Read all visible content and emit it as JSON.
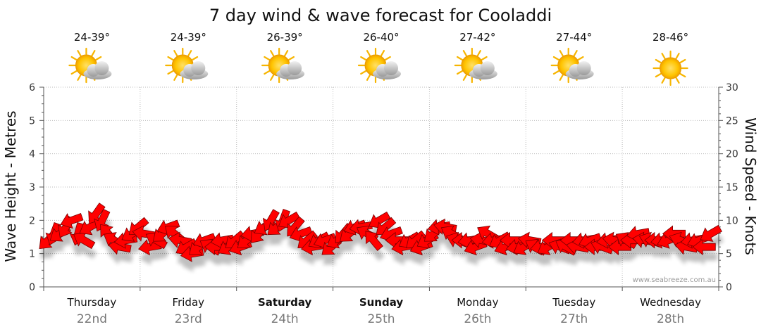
{
  "chart_data": {
    "type": "scatter",
    "title": "7 day wind & wave forecast for Cooladdi",
    "y_left_label": "Wave Height - Metres",
    "y_right_label": "Wind Speed - Knots",
    "y_left_ticks": [
      "0",
      "1",
      "2",
      "3",
      "4",
      "5",
      "6"
    ],
    "y_right_ticks": [
      "0",
      "5",
      "10",
      "15",
      "20",
      "25",
      "30"
    ],
    "ylim_left": [
      0,
      6
    ],
    "ylim_right": [
      0,
      30
    ],
    "grid": true,
    "credit": "www.seabreeze.com.au",
    "days": [
      {
        "name": "Thursday",
        "date": "22nd",
        "bold": false,
        "temp": "24-39°",
        "icon": "sun-cloud-icon"
      },
      {
        "name": "Friday",
        "date": "23rd",
        "bold": false,
        "temp": "24-39°",
        "icon": "sun-cloud-icon"
      },
      {
        "name": "Saturday",
        "date": "24th",
        "bold": true,
        "temp": "26-39°",
        "icon": "sun-cloud-icon"
      },
      {
        "name": "Sunday",
        "date": "25th",
        "bold": true,
        "temp": "26-40°",
        "icon": "sun-cloud-icon"
      },
      {
        "name": "Monday",
        "date": "26th",
        "bold": false,
        "temp": "27-42°",
        "icon": "sun-cloud-icon"
      },
      {
        "name": "Tuesday",
        "date": "27th",
        "bold": false,
        "temp": "27-44°",
        "icon": "sun-cloud-icon"
      },
      {
        "name": "Wednesday",
        "date": "28th",
        "bold": false,
        "temp": "28-46°",
        "icon": "sun-icon"
      }
    ],
    "arrow_color": "#ff0000",
    "wind_series": {
      "x_day_fraction_step": 0.0625,
      "speed_knots": [
        7,
        8,
        8,
        9,
        10,
        8,
        7,
        9,
        11,
        10,
        8,
        7,
        6,
        7,
        8,
        9,
        8,
        6,
        7,
        8,
        9,
        8,
        7,
        6,
        5,
        6,
        7,
        6,
        6,
        7,
        6,
        7,
        6,
        7,
        8,
        8,
        9,
        10,
        9,
        10,
        10,
        9,
        8,
        7,
        6,
        7,
        7,
        6,
        7,
        8,
        8,
        9,
        9,
        8,
        7,
        10,
        9,
        8,
        7,
        6,
        7,
        7,
        6,
        7,
        8,
        9,
        9,
        8,
        7,
        7,
        7,
        6,
        7,
        8,
        7,
        7,
        6,
        7,
        6,
        6,
        7,
        6,
        6,
        6,
        7,
        6,
        6,
        7,
        6,
        7,
        7,
        6,
        6,
        7,
        7,
        6,
        7,
        7,
        8,
        7,
        7,
        7,
        7,
        7,
        8,
        7,
        6,
        7,
        7,
        6,
        8,
        9
      ],
      "direction_deg": [
        225,
        200,
        235,
        210,
        250,
        195,
        300,
        240,
        215,
        205,
        320,
        300,
        280,
        260,
        240,
        230,
        280,
        260,
        300,
        230,
        250,
        310,
        280,
        240,
        260,
        230,
        250,
        300,
        270,
        260,
        240,
        230,
        250,
        230,
        260,
        220,
        240,
        210,
        230,
        200,
        240,
        220,
        250,
        230,
        260,
        240,
        250,
        230,
        240,
        220,
        230,
        250,
        260,
        300,
        320,
        240,
        230,
        250,
        270,
        260,
        240,
        230,
        250,
        240,
        230,
        260,
        280,
        300,
        290,
        270,
        260,
        250,
        280,
        300,
        260,
        240,
        250,
        270,
        260,
        240,
        280,
        300,
        260,
        240,
        270,
        290,
        300,
        270,
        280,
        260,
        250,
        270,
        290,
        260,
        280,
        270,
        300,
        270,
        260,
        280,
        290,
        270,
        260,
        250,
        270,
        290,
        280,
        260,
        250,
        270,
        240,
        225
      ]
    }
  }
}
